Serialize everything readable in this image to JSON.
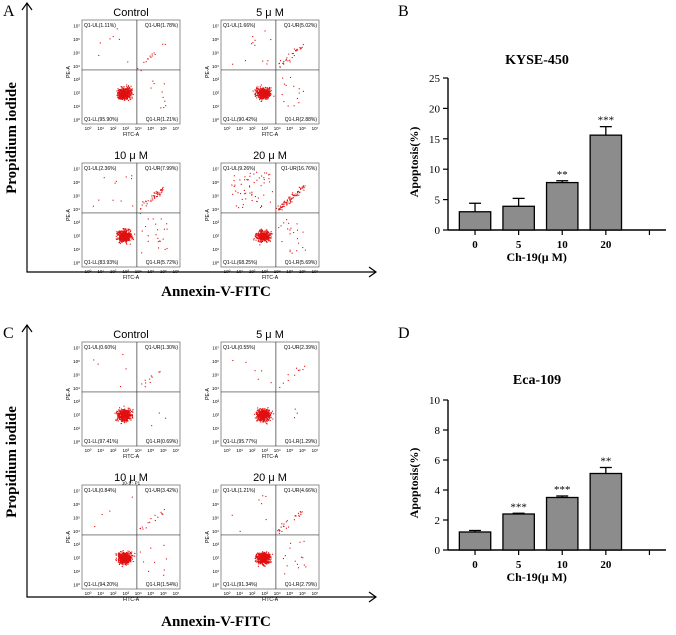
{
  "panel_letters": [
    "A",
    "B",
    "C",
    "D"
  ],
  "flow_x_axis_title": "Annexin-V-FITC",
  "flow_y_axis_title": "Propidium iodide",
  "flow_subplot_axis_x": "FITC-A",
  "flow_subplot_axis_y": "PE-A",
  "flow_tick_labels": [
    "10⁰",
    "10¹",
    "10²",
    "10³",
    "10⁴",
    "10⁵",
    "10⁶",
    "10⁷"
  ],
  "flow_panels": [
    {
      "id": "A",
      "plots": [
        {
          "title": "Control",
          "UL": "Q1-UL(1.11%)",
          "UR": "Q1-UR(1.78%)",
          "LL": "Q1-LL(95.90%)",
          "LR": "Q1-LR(1.21%)",
          "extra": ""
        },
        {
          "title": "5 μ M",
          "UL": "Q1-UL(1.66%)",
          "UR": "Q1-UR(5.02%)",
          "LL": "Q1-LL(90.42%)",
          "LR": "Q1-LR(2.88%)",
          "extra": ""
        },
        {
          "title": "10 μ M",
          "UL": "Q1-UL(2.36%)",
          "UR": "Q1-UR(7.99%)",
          "LL": "Q1-LL(83.93%)",
          "LR": "Q1-LR(5.72%)",
          "extra": ""
        },
        {
          "title": "20 μ M",
          "UL": "Q1-UL(9.26%)",
          "UR": "Q1-UR(16.76%)",
          "LL": "Q1-LL(68.25%)",
          "LR": "Q1-LR(5.69%)",
          "extra": ""
        }
      ]
    },
    {
      "id": "C",
      "plots": [
        {
          "title": "Control",
          "UL": "Q1-UL(0.60%)",
          "UR": "Q1-UR(1.30%)",
          "LL": "Q1-LL(97.41%)",
          "LR": "Q1-LR(0.69%)",
          "extra": ""
        },
        {
          "title": "5 μ M",
          "UL": "Q1-UL(0.55%)",
          "UR": "Q1-UR(2.39%)",
          "LL": "Q1-LL(95.77%)",
          "LR": "Q1-LR(1.29%)",
          "extra": ""
        },
        {
          "title": "10 μ M",
          "UL": "Q1-UL(0.84%)",
          "UR": "Q1-UR(3.42%)",
          "LL": "Q1-LL(94.20%)",
          "LR": "Q1-LR(1.54%)",
          "extra": "10-1 : P1"
        },
        {
          "title": "20 μ M",
          "UL": "Q1-UL(1.21%)",
          "UR": "Q1-UR(4.66%)",
          "LL": "Q1-LL(91.34%)",
          "LR": "Q1-LR(2.79%)",
          "extra": ""
        }
      ]
    }
  ],
  "chart_data": [
    {
      "id": "B",
      "type": "bar",
      "title": "KYSE-450",
      "categories": [
        "0",
        "5",
        "10",
        "20"
      ],
      "values": [
        3.0,
        3.9,
        7.8,
        15.6
      ],
      "errors": [
        1.4,
        1.3,
        0.3,
        1.4
      ],
      "significance": [
        "",
        "",
        "**",
        "***"
      ],
      "xlabel": "Ch-19(μ M)",
      "ylabel": "Apoptosis(%)",
      "ylim": [
        0,
        25
      ],
      "yticks": [
        "0",
        "5",
        "10",
        "15",
        "20",
        "25"
      ],
      "bar_color": "#8c8c8c"
    },
    {
      "id": "D",
      "type": "bar",
      "title": "Eca-109",
      "categories": [
        "0",
        "5",
        "10",
        "20"
      ],
      "values": [
        1.2,
        2.4,
        3.5,
        5.1
      ],
      "errors": [
        0.1,
        0.05,
        0.1,
        0.4
      ],
      "significance": [
        "",
        "***",
        "***",
        "**"
      ],
      "xlabel": "Ch-19(μ M)",
      "ylabel": "Apoptosis(%)",
      "ylim": [
        0,
        10
      ],
      "yticks": [
        "0",
        "2",
        "4",
        "6",
        "8",
        "10"
      ],
      "bar_color": "#8c8c8c"
    }
  ],
  "colors": {
    "dots": "#e01010",
    "axis": "#000000",
    "quad_line": "#333333"
  }
}
